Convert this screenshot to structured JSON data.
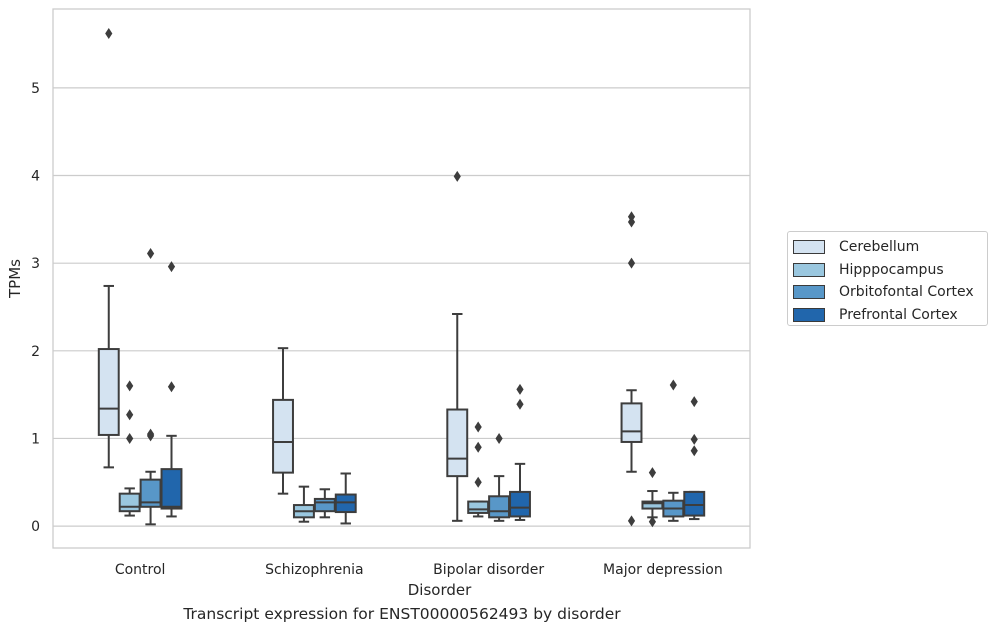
{
  "caption": "Transcript expression for ENST00000562493 by disorder",
  "chart_data": {
    "type": "box",
    "xlabel": "Disorder",
    "ylabel": "TPMs",
    "ylim": [
      -0.25,
      5.9
    ],
    "yticks": [
      0,
      1,
      2,
      3,
      4,
      5
    ],
    "grid": "horizontal",
    "legend_position": "right",
    "categories": [
      "Control",
      "Schizophrenia",
      "Bipolar disorder",
      "Major depression"
    ],
    "series": [
      {
        "name": "Cerebellum",
        "color": "#d4e3f1",
        "boxes": [
          {
            "whisker_low": 0.67,
            "q1": 1.04,
            "median": 1.34,
            "q3": 2.02,
            "whisker_high": 2.74,
            "outliers": [
              5.62
            ]
          },
          {
            "whisker_low": 0.37,
            "q1": 0.61,
            "median": 0.96,
            "q3": 1.44,
            "whisker_high": 2.03,
            "outliers": []
          },
          {
            "whisker_low": 0.06,
            "q1": 0.57,
            "median": 0.77,
            "q3": 1.33,
            "whisker_high": 2.42,
            "outliers": [
              3.99
            ]
          },
          {
            "whisker_low": 0.62,
            "q1": 0.96,
            "median": 1.08,
            "q3": 1.4,
            "whisker_high": 1.55,
            "outliers": [
              0.06,
              3.0,
              3.47,
              3.53
            ]
          }
        ]
      },
      {
        "name": "Hipppocampus",
        "color": "#9ac7df",
        "boxes": [
          {
            "whisker_low": 0.12,
            "q1": 0.17,
            "median": 0.22,
            "q3": 0.37,
            "whisker_high": 0.43,
            "outliers": [
              1.0,
              1.27,
              1.6
            ]
          },
          {
            "whisker_low": 0.05,
            "q1": 0.1,
            "median": 0.17,
            "q3": 0.24,
            "whisker_high": 0.45,
            "outliers": []
          },
          {
            "whisker_low": 0.11,
            "q1": 0.15,
            "median": 0.19,
            "q3": 0.28,
            "whisker_high": 0.28,
            "outliers": [
              0.5,
              0.9,
              1.13
            ]
          },
          {
            "whisker_low": 0.1,
            "q1": 0.2,
            "median": 0.26,
            "q3": 0.28,
            "whisker_high": 0.4,
            "outliers": [
              0.05,
              0.61
            ]
          }
        ]
      },
      {
        "name": "Orbitofontal Cortex",
        "color": "#5897c8",
        "boxes": [
          {
            "whisker_low": 0.02,
            "q1": 0.22,
            "median": 0.27,
            "q3": 0.53,
            "whisker_high": 0.62,
            "outliers": [
              1.03,
              1.05,
              3.11
            ]
          },
          {
            "whisker_low": 0.1,
            "q1": 0.17,
            "median": 0.27,
            "q3": 0.31,
            "whisker_high": 0.42,
            "outliers": []
          },
          {
            "whisker_low": 0.06,
            "q1": 0.1,
            "median": 0.17,
            "q3": 0.34,
            "whisker_high": 0.57,
            "outliers": [
              1.0
            ]
          },
          {
            "whisker_low": 0.06,
            "q1": 0.11,
            "median": 0.2,
            "q3": 0.29,
            "whisker_high": 0.38,
            "outliers": [
              1.61
            ]
          }
        ]
      },
      {
        "name": "Prefrontal Cortex",
        "color": "#2166ac",
        "boxes": [
          {
            "whisker_low": 0.11,
            "q1": 0.2,
            "median": 0.22,
            "q3": 0.65,
            "whisker_high": 1.03,
            "outliers": [
              1.59,
              2.96
            ]
          },
          {
            "whisker_low": 0.03,
            "q1": 0.16,
            "median": 0.27,
            "q3": 0.36,
            "whisker_high": 0.6,
            "outliers": []
          },
          {
            "whisker_low": 0.07,
            "q1": 0.11,
            "median": 0.21,
            "q3": 0.39,
            "whisker_high": 0.71,
            "outliers": [
              1.39,
              1.56
            ]
          },
          {
            "whisker_low": 0.08,
            "q1": 0.12,
            "median": 0.24,
            "q3": 0.39,
            "whisker_high": 0.39,
            "outliers": [
              0.86,
              0.99,
              1.42
            ]
          }
        ]
      }
    ]
  }
}
